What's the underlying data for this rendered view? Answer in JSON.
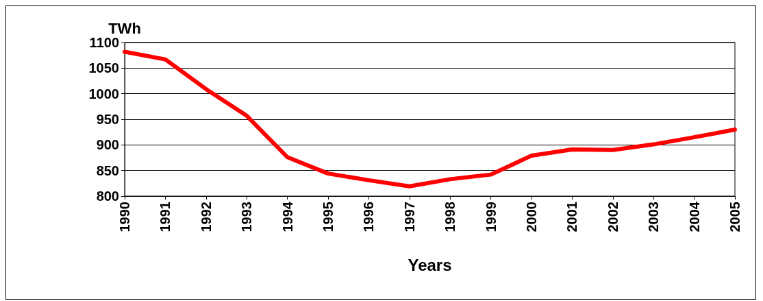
{
  "chart_data": {
    "type": "line",
    "ylabel": "TWh",
    "xlabel": "Years",
    "categories": [
      "1990",
      "1991",
      "1992",
      "1993",
      "1994",
      "1995",
      "1996",
      "1997",
      "1998",
      "1999",
      "2000",
      "2001",
      "2002",
      "2003",
      "2004",
      "2005"
    ],
    "series": [
      {
        "color": "#ff0000",
        "values": [
          1082,
          1067,
          1009,
          957,
          876,
          844,
          831,
          819,
          833,
          842,
          879,
          891,
          890,
          901,
          915,
          930
        ]
      }
    ],
    "ylim": [
      800,
      1100
    ],
    "yticks": [
      800,
      850,
      900,
      950,
      1000,
      1050,
      1100
    ],
    "grid": "y",
    "marker": "none",
    "line_style": "solid"
  }
}
